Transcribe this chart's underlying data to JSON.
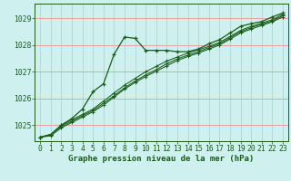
{
  "title": "Graphe pression niveau de la mer (hPa)",
  "bg_color": "#cef0ee",
  "line_color": "#1a5c1a",
  "grid_h_color": "#e8a0a0",
  "grid_v_color": "#b0cccc",
  "ylim": [
    1024.4,
    1029.55
  ],
  "yticks": [
    1025,
    1026,
    1027,
    1028,
    1029
  ],
  "xlim": [
    -0.5,
    23.5
  ],
  "xticks": [
    0,
    1,
    2,
    3,
    4,
    5,
    6,
    7,
    8,
    9,
    10,
    11,
    12,
    13,
    14,
    15,
    16,
    17,
    18,
    19,
    20,
    21,
    22,
    23
  ],
  "series": [
    [
      1024.55,
      1024.65,
      1025.0,
      1025.25,
      1025.6,
      1026.25,
      1026.55,
      1027.65,
      1028.3,
      1028.25,
      1027.8,
      1027.8,
      1027.8,
      1027.75,
      1027.75,
      1027.85,
      1028.05,
      1028.2,
      1028.45,
      1028.7,
      1028.8,
      1028.88,
      1029.05,
      1029.2
    ],
    [
      1024.55,
      1024.65,
      1025.0,
      1025.2,
      1025.4,
      1025.6,
      1025.9,
      1026.2,
      1026.5,
      1026.75,
      1027.0,
      1027.2,
      1027.4,
      1027.55,
      1027.7,
      1027.82,
      1027.95,
      1028.1,
      1028.32,
      1028.55,
      1028.7,
      1028.82,
      1028.95,
      1029.15
    ],
    [
      1024.55,
      1024.65,
      1024.95,
      1025.15,
      1025.35,
      1025.55,
      1025.82,
      1026.1,
      1026.4,
      1026.65,
      1026.88,
      1027.08,
      1027.3,
      1027.48,
      1027.62,
      1027.75,
      1027.9,
      1028.05,
      1028.27,
      1028.5,
      1028.65,
      1028.78,
      1028.9,
      1029.1
    ],
    [
      1024.55,
      1024.6,
      1024.9,
      1025.1,
      1025.3,
      1025.5,
      1025.75,
      1026.05,
      1026.35,
      1026.6,
      1026.82,
      1027.02,
      1027.22,
      1027.42,
      1027.57,
      1027.7,
      1027.85,
      1028.0,
      1028.22,
      1028.45,
      1028.6,
      1028.73,
      1028.87,
      1029.05
    ]
  ],
  "tick_fontsize": 5.8,
  "label_fontsize": 6.5
}
